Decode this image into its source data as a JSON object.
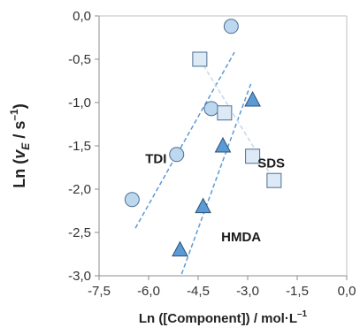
{
  "chart_data": {
    "type": "scatter",
    "xlim": [
      -7.5,
      0.0
    ],
    "ylim": [
      -3.0,
      0.0
    ],
    "x_ticks": [
      "-7,5",
      "-6,0",
      "-4,5",
      "-3,0",
      "-1,5",
      "0,0"
    ],
    "y_ticks": [
      "0,0",
      "-0,5",
      "-1,0",
      "-1,5",
      "-2,0",
      "-2,5",
      "-3,0"
    ],
    "xlabel": "Ln ([Component]) / mol·L",
    "xlabel_sup": "–1",
    "ylabel_prefix": "Ln (",
    "ylabel_v": "v",
    "ylabel_sub": "E",
    "ylabel_suffix": " / s",
    "ylabel_sup": "–1",
    "ylabel_close": ")",
    "grid": false,
    "series": [
      {
        "name": "TDI",
        "marker": "circle",
        "fill": "#bdd7ee",
        "stroke": "#4a6f94",
        "points": [
          [
            -6.5,
            -2.12
          ],
          [
            -5.15,
            -1.6
          ],
          [
            -4.1,
            -1.07
          ],
          [
            -3.5,
            -0.12
          ]
        ],
        "trend": [
          [
            -6.4,
            -2.45
          ],
          [
            -3.4,
            -0.42
          ]
        ],
        "trend_color": "#5b9bd5",
        "label_pos": [
          -6.1,
          -1.7
        ]
      },
      {
        "name": "HMDA",
        "marker": "triangle",
        "fill": "#5b9bd5",
        "stroke": "#2e4f73",
        "points": [
          [
            -5.05,
            -2.7
          ],
          [
            -4.35,
            -2.2
          ],
          [
            -3.75,
            -1.5
          ],
          [
            -2.85,
            -0.97
          ]
        ],
        "trend": [
          [
            -5.0,
            -2.98
          ],
          [
            -2.9,
            -0.78
          ]
        ],
        "trend_color": "#5b9bd5",
        "label_pos": [
          -3.8,
          -2.6
        ]
      },
      {
        "name": "SDS",
        "marker": "square",
        "fill": "#dde9f5",
        "stroke": "#4a6f94",
        "points": [
          [
            -4.45,
            -0.5
          ],
          [
            -3.7,
            -1.12
          ],
          [
            -2.85,
            -1.62
          ],
          [
            -2.2,
            -1.9
          ]
        ],
        "trend": [
          [
            -4.45,
            -0.5
          ],
          [
            -2.2,
            -1.9
          ]
        ],
        "trend_color": "#c8d8e8",
        "label_pos": [
          -2.7,
          -1.75
        ]
      }
    ]
  }
}
